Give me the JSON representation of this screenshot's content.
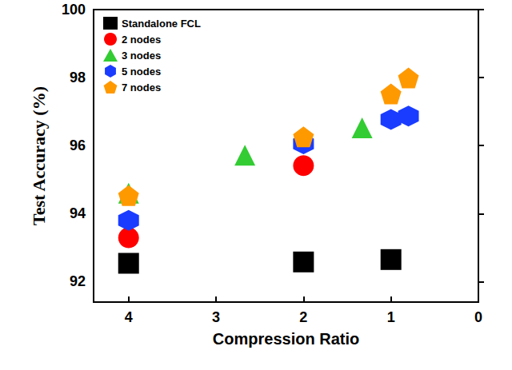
{
  "chart_data": {
    "type": "scatter",
    "x_label": "Compression Ratio",
    "y_label": "Test Accuracy (%)",
    "xlim": [
      4.4,
      0
    ],
    "xticks": [
      4,
      3,
      2,
      1,
      0
    ],
    "ylim": [
      91.4,
      100
    ],
    "yticks": [
      92,
      94,
      96,
      98,
      100
    ],
    "grid": false,
    "legend": "upper left",
    "series": [
      {
        "name": "Standalone FCL",
        "color": "#000000",
        "marker": "square",
        "x": [
          4,
          2,
          1
        ],
        "values": [
          92.54,
          92.58,
          92.65
        ]
      },
      {
        "name": "2 nodes",
        "color": "#ff0000",
        "marker": "circle",
        "x": [
          4,
          2
        ],
        "values": [
          93.29,
          95.41
        ]
      },
      {
        "name": "3 nodes",
        "color": "#33cc33",
        "marker": "triangle",
        "x": [
          4,
          2.67,
          1.33
        ],
        "values": [
          94.6,
          95.72,
          96.52
        ]
      },
      {
        "name": "5 nodes",
        "color": "#1a3cff",
        "marker": "hexagon",
        "x": [
          4,
          2,
          1,
          0.8
        ],
        "values": [
          93.8,
          96.05,
          96.77,
          96.87
        ]
      },
      {
        "name": "7 nodes",
        "color": "#ff9900",
        "marker": "pentagon",
        "x": [
          4,
          2,
          1,
          0.8
        ],
        "values": [
          94.53,
          96.26,
          97.52,
          97.99
        ]
      }
    ]
  }
}
